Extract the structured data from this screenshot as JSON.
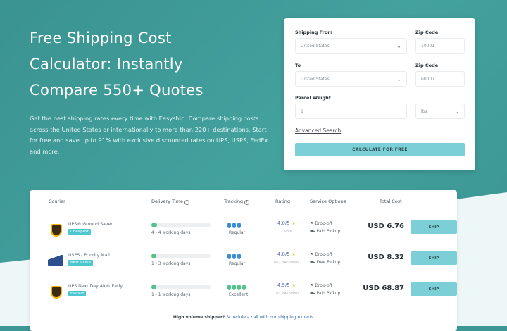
{
  "hero": {
    "title_lines": [
      "Free Shipping Cost",
      "Calculator: Instantly",
      "Compare 550+ Quotes"
    ],
    "description": "Get the best shipping rates every time with Easyship. Compare shipping costs across the United States or internationally to more than 220+ destinations. Start for free and save up to 91% with exclusive discounted rates on UPS, USPS, FedEx and more."
  },
  "form": {
    "from_label": "Shipping From",
    "from_value": "United States",
    "from_zip_label": "Zip Code",
    "from_zip": "10001",
    "to_label": "To",
    "to_value": "United States",
    "to_zip_label": "Zip Code",
    "to_zip": "60007",
    "weight_label": "Parcel Weight",
    "weight_value": "1",
    "unit_value": "lbs",
    "advanced": "Advanced Search",
    "calculate": "CALCULATE FOR FREE"
  },
  "table": {
    "headers": {
      "courier": "Courier",
      "delivery": "Delivery Time",
      "tracking": "Tracking",
      "rating": "Rating",
      "service": "Service Options",
      "cost": "Total Cost"
    },
    "rows": [
      {
        "name": "UPS® Ground Saver",
        "badge": "Cheapest",
        "delivery_progress": 0.1,
        "days": "4 - 4 working days",
        "tracking": "Regular",
        "tracking_level": 3,
        "rating": "4.0/5",
        "votes": "1 vote",
        "opt1": "Drop-off",
        "opt2": "Paid Pickup",
        "cost": "USD 6.76",
        "ship": "SHIP",
        "logo": "ups"
      },
      {
        "name": "USPS - Priority Mail",
        "badge": "Best Value",
        "delivery_progress": 0.05,
        "days": "1 - 3 working days",
        "tracking": "Regular",
        "tracking_level": 3,
        "rating": "4.0/5",
        "votes": "852,346 votes",
        "opt1": "Drop-off",
        "opt2": "Free Pickup",
        "cost": "USD 8.32",
        "ship": "SHIP",
        "logo": "usps"
      },
      {
        "name": "UPS Next Day Air® Early",
        "badge": "Fastest",
        "delivery_progress": 0.05,
        "days": "1 - 1 working days",
        "tracking": "Excellent",
        "tracking_level": 4,
        "rating": "4.5/5",
        "votes": "101,242 votes",
        "opt1": "Drop-off",
        "opt2": "Paid Pickup",
        "cost": "USD 68.87",
        "ship": "SHIP",
        "logo": "ups"
      }
    ],
    "footer_text": "High volume shipper?",
    "footer_link": "Schedule a call with our shipping experts"
  },
  "colors": {
    "brand_teal": "#3d9794",
    "button": "#7ccfd6",
    "badge": "#4cc7cf",
    "regular_dots": "#3a8fd0",
    "excellent_dots": "#52c48a"
  }
}
